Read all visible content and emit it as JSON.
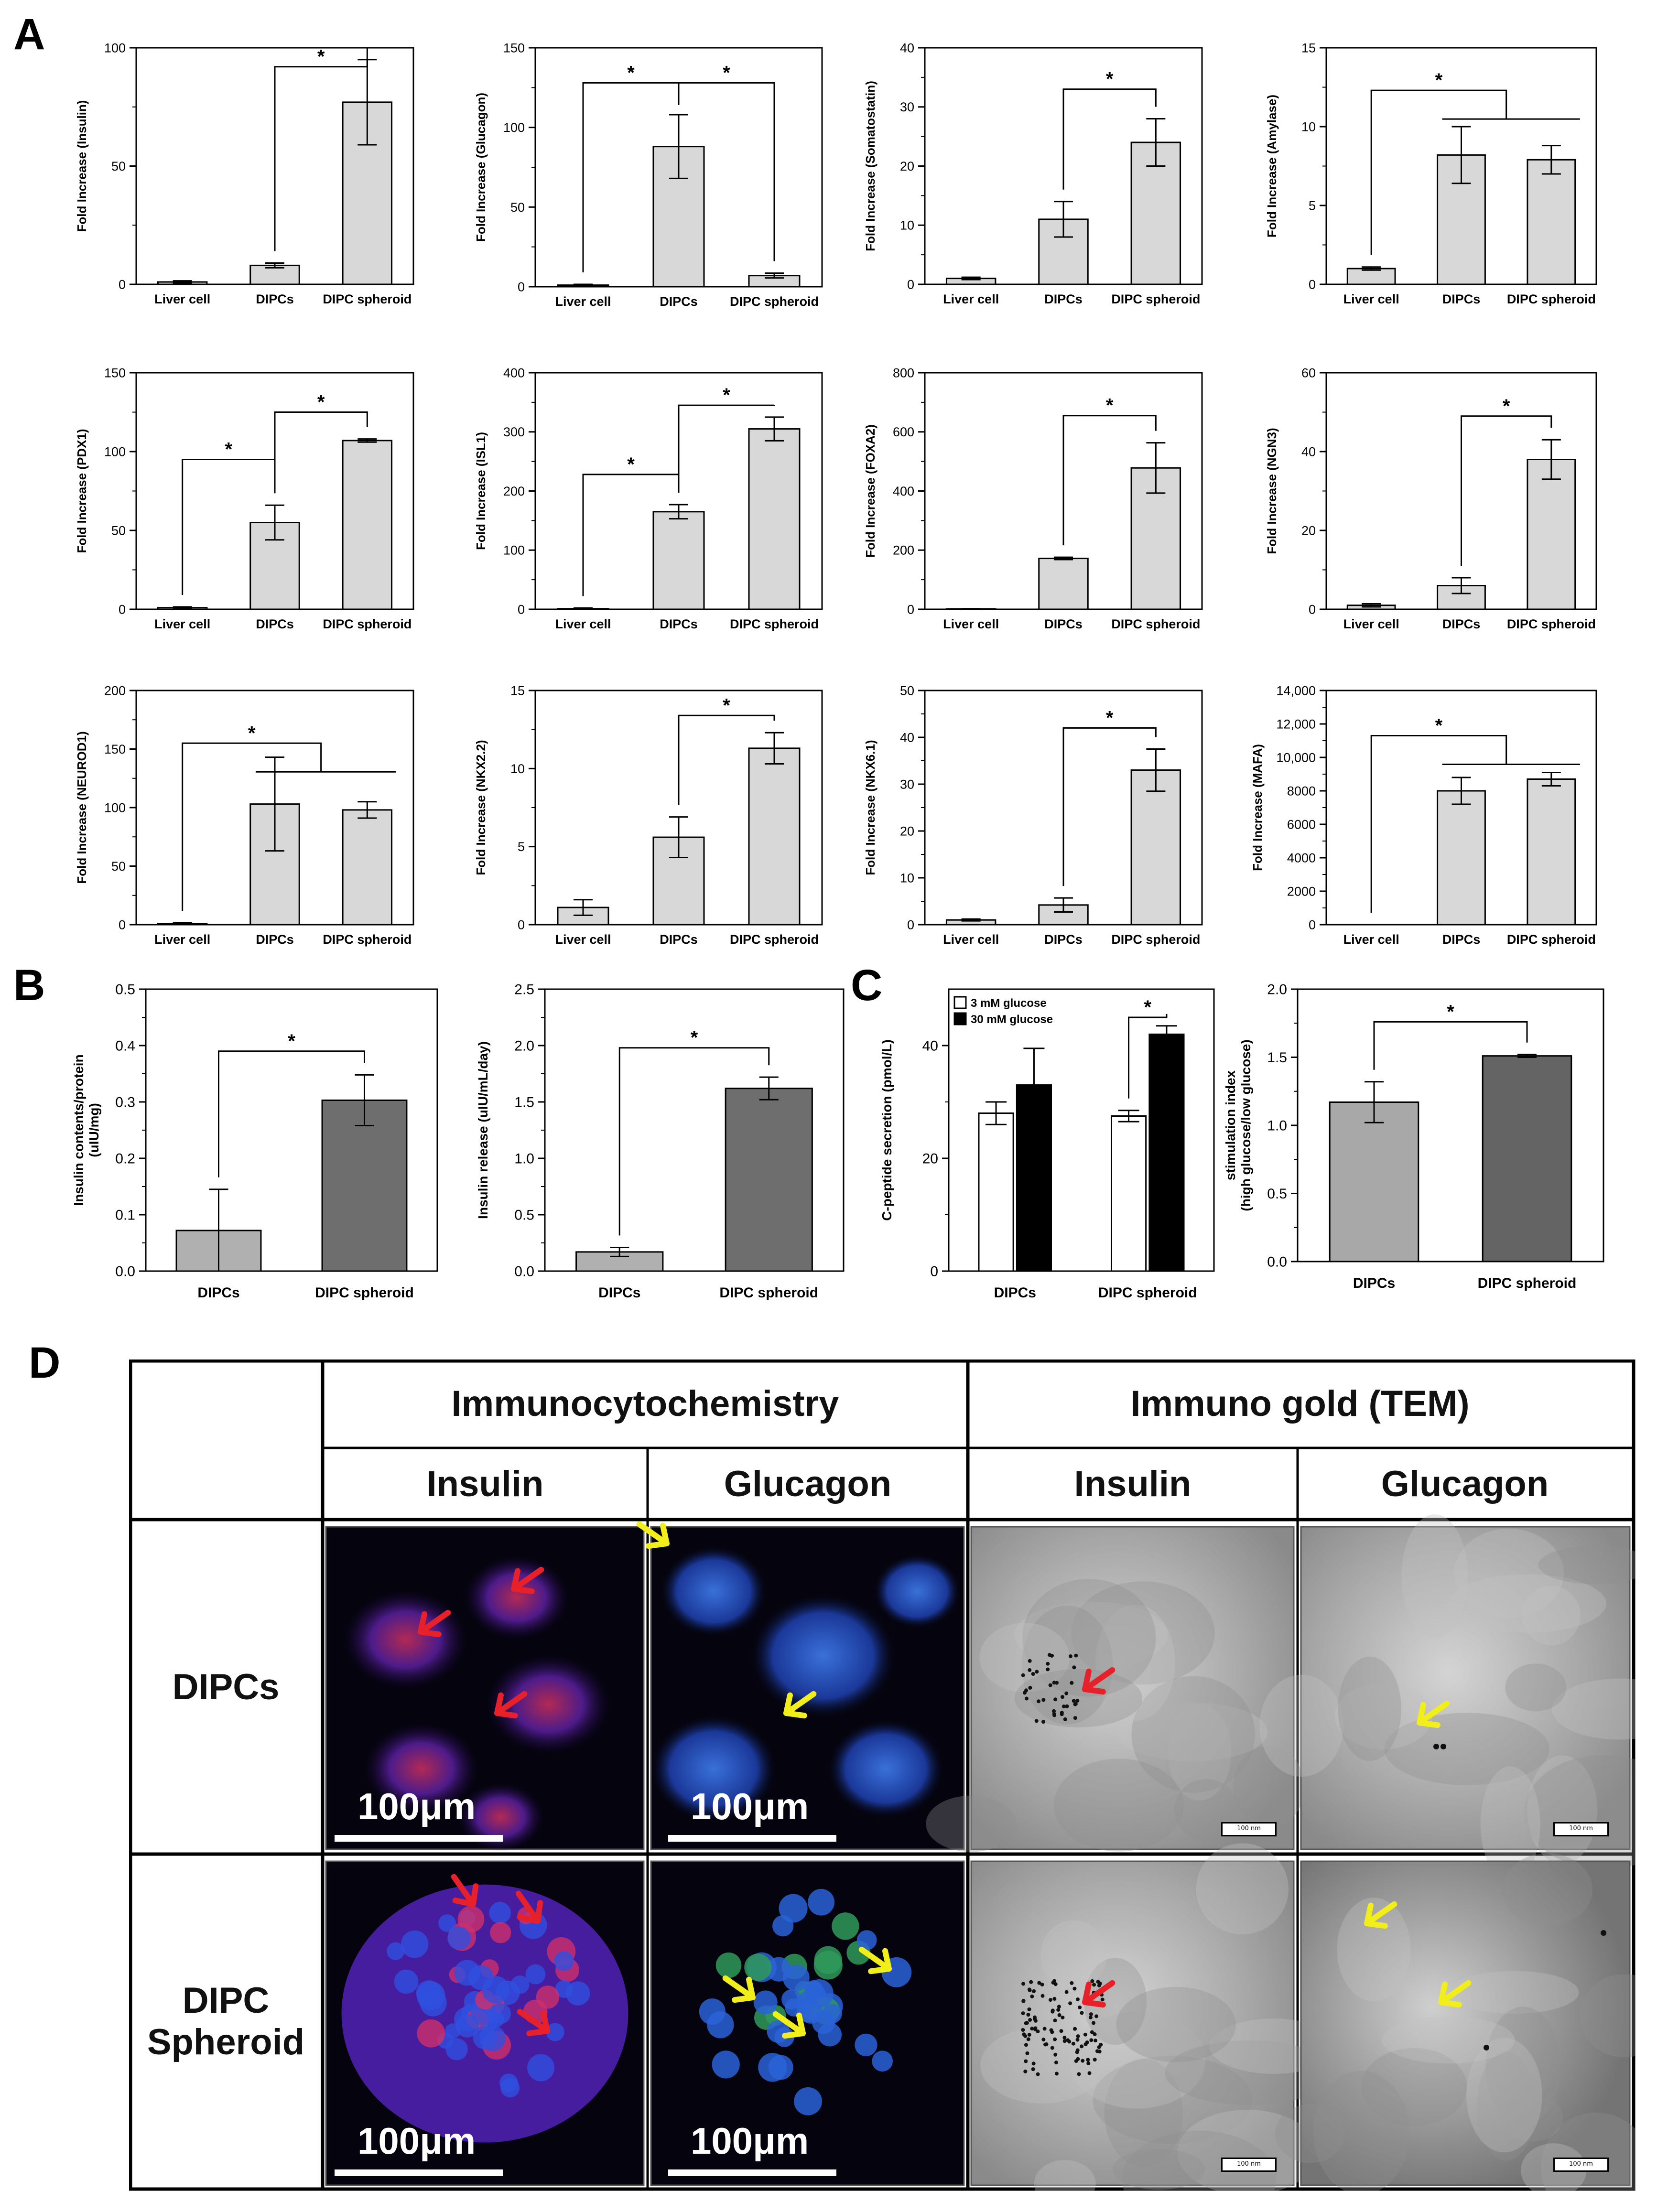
{
  "panels": {
    "A": "A",
    "B": "B",
    "C": "C",
    "D": "D"
  },
  "chart_data": [
    {
      "id": "insulin",
      "type": "bar",
      "categories": [
        "Liver cell",
        "DIPCs",
        "DIPC spheroid"
      ],
      "values": [
        1,
        8,
        77
      ],
      "errors": [
        0.5,
        1,
        18
      ],
      "ylabel": "Fold Increase (Insulin)",
      "ylim": [
        0,
        100
      ],
      "yticks": [
        "0",
        "50",
        "100"
      ],
      "sig": [
        {
          "from": 1,
          "to": 2,
          "y": 92,
          "label": "*",
          "mode": "pair"
        }
      ]
    },
    {
      "id": "glucagon",
      "type": "bar",
      "categories": [
        "Liver cell",
        "DIPCs",
        "DIPC spheroid"
      ],
      "values": [
        1,
        88,
        7
      ],
      "errors": [
        0.5,
        20,
        1.5
      ],
      "ylabel": "Fold Increase (Glucagon)",
      "ylim": [
        0,
        150
      ],
      "yticks": [
        "0",
        "50",
        "100",
        "150"
      ],
      "sig": [
        {
          "from": 0,
          "to": 2,
          "hub": 1,
          "y": 128,
          "label": "*",
          "mode": "split"
        }
      ]
    },
    {
      "id": "somatostatin",
      "type": "bar",
      "categories": [
        "Liver cell",
        "DIPCs",
        "DIPC spheroid"
      ],
      "values": [
        1,
        11,
        24
      ],
      "errors": [
        0.2,
        3,
        4
      ],
      "ylabel": "Fold Increase (Somatostatin)",
      "ylim": [
        0,
        40
      ],
      "yticks": [
        "0",
        "10",
        "20",
        "30",
        "40"
      ],
      "sig": [
        {
          "from": 1,
          "to": 2,
          "y": 33,
          "label": "*",
          "mode": "pair"
        }
      ]
    },
    {
      "id": "amylase",
      "type": "bar",
      "categories": [
        "Liver cell",
        "DIPCs",
        "DIPC spheroid"
      ],
      "values": [
        1,
        8.2,
        7.9
      ],
      "errors": [
        0.1,
        1.8,
        0.9
      ],
      "ylabel": "Fold Increase (Amylase)",
      "ylim": [
        0,
        15
      ],
      "yticks": [
        "0",
        "5",
        "10",
        "15"
      ],
      "sig": [
        {
          "from": 0,
          "to": 2,
          "y": 12.3,
          "label": "*",
          "mode": "group"
        }
      ]
    },
    {
      "id": "pdx1",
      "type": "bar",
      "categories": [
        "Liver cell",
        "DIPCs",
        "DIPC spheroid"
      ],
      "values": [
        1,
        55,
        107
      ],
      "errors": [
        0.5,
        11,
        1
      ],
      "ylabel": "Fold Increase (PDX1)",
      "ylim": [
        0,
        150
      ],
      "yticks": [
        "0",
        "50",
        "100",
        "150"
      ],
      "sig": [
        {
          "from": 0,
          "to": 1,
          "y": 95,
          "label": "*",
          "mode": "pair"
        },
        {
          "from": 1,
          "to": 2,
          "y": 125,
          "label": "*",
          "mode": "pair"
        }
      ]
    },
    {
      "id": "isl1",
      "type": "bar",
      "categories": [
        "Liver cell",
        "DIPCs",
        "DIPC spheroid"
      ],
      "values": [
        1,
        165,
        305
      ],
      "errors": [
        1,
        12,
        20
      ],
      "ylabel": "Fold Increase (ISL1)",
      "ylim": [
        0,
        400
      ],
      "yticks": [
        "0",
        "100",
        "200",
        "300",
        "400"
      ],
      "sig": [
        {
          "from": 0,
          "to": 1,
          "y": 228,
          "label": "*",
          "mode": "pair"
        },
        {
          "from": 1,
          "to": 2,
          "y": 345,
          "label": "*",
          "mode": "pair"
        }
      ]
    },
    {
      "id": "foxa2",
      "type": "bar",
      "categories": [
        "Liver cell",
        "DIPCs",
        "DIPC spheroid"
      ],
      "values": [
        1,
        172,
        478
      ],
      "errors": [
        1,
        4,
        85
      ],
      "ylabel": "Fold Increase (FOXA2)",
      "ylim": [
        0,
        800
      ],
      "yticks": [
        "0",
        "200",
        "400",
        "600",
        "800"
      ],
      "sig": [
        {
          "from": 1,
          "to": 2,
          "y": 655,
          "label": "*",
          "mode": "pair"
        }
      ]
    },
    {
      "id": "ngn3",
      "type": "bar",
      "categories": [
        "Liver cell",
        "DIPCs",
        "DIPC spheroid"
      ],
      "values": [
        1,
        6,
        38
      ],
      "errors": [
        0.4,
        2,
        5
      ],
      "ylabel": "Fold Increase (NGN3)",
      "ylim": [
        0,
        60
      ],
      "yticks": [
        "0",
        "20",
        "40",
        "60"
      ],
      "sig": [
        {
          "from": 1,
          "to": 2,
          "y": 49,
          "label": "*",
          "mode": "pair"
        }
      ]
    },
    {
      "id": "neurod1",
      "type": "bar",
      "categories": [
        "Liver cell",
        "DIPCs",
        "DIPC spheroid"
      ],
      "values": [
        1,
        103,
        98
      ],
      "errors": [
        0.5,
        40,
        7
      ],
      "ylabel": "Fold Increase (NEUROD1)",
      "ylim": [
        0,
        200
      ],
      "yticks": [
        "0",
        "50",
        "100",
        "150",
        "200"
      ],
      "sig": [
        {
          "from": 0,
          "to": 2,
          "y": 155,
          "label": "*",
          "mode": "group"
        }
      ]
    },
    {
      "id": "nkx22",
      "type": "bar",
      "categories": [
        "Liver cell",
        "DIPCs",
        "DIPC spheroid"
      ],
      "values": [
        1.1,
        5.6,
        11.3
      ],
      "errors": [
        0.5,
        1.3,
        1
      ],
      "ylabel": "Fold Increase (NKX2.2)",
      "ylim": [
        0,
        15
      ],
      "yticks": [
        "0",
        "5",
        "10",
        "15"
      ],
      "sig": [
        {
          "from": 1,
          "to": 2,
          "y": 13.4,
          "label": "*",
          "mode": "pair"
        }
      ]
    },
    {
      "id": "nkx61",
      "type": "bar",
      "categories": [
        "Liver cell",
        "DIPCs",
        "DIPC spheroid"
      ],
      "values": [
        1,
        4.2,
        33
      ],
      "errors": [
        0.2,
        1.5,
        4.5
      ],
      "ylabel": "Fold Increase (NKX6.1)",
      "ylim": [
        0,
        50
      ],
      "yticks": [
        "0",
        "10",
        "20",
        "30",
        "40",
        "50"
      ],
      "sig": [
        {
          "from": 1,
          "to": 2,
          "y": 42,
          "label": "*",
          "mode": "pair"
        }
      ]
    },
    {
      "id": "mafa",
      "type": "bar",
      "categories": [
        "Liver cell",
        "DIPCs",
        "DIPC spheroid"
      ],
      "values": [
        0,
        8000,
        8700
      ],
      "errors": [
        0,
        800,
        400
      ],
      "ylabel": "Fold Increase (MAFA)",
      "ylim": [
        0,
        14000
      ],
      "yticks": [
        "0",
        "2000",
        "4000",
        "6000",
        "8000",
        "10,000",
        "12,000",
        "14,000"
      ],
      "sig": [
        {
          "from": 0,
          "to": 2,
          "y": 11300,
          "label": "*",
          "mode": "group"
        }
      ]
    },
    {
      "id": "insulin-content",
      "type": "bar",
      "categories": [
        "DIPCs",
        "DIPC spheroid"
      ],
      "values": [
        0.072,
        0.303
      ],
      "errors": [
        0.073,
        0.045
      ],
      "ylabel": "Insulin contents/protein (uIU/mg)",
      "ylim": [
        0,
        0.5
      ],
      "yticks": [
        "0.0",
        "0.1",
        "0.2",
        "0.3",
        "0.4",
        "0.5"
      ],
      "colors": [
        "#b0b0b0",
        "#6e6e6e"
      ],
      "sig": [
        {
          "from": 0,
          "to": 1,
          "y": 0.39,
          "label": "*",
          "mode": "pair"
        }
      ]
    },
    {
      "id": "insulin-release",
      "type": "bar",
      "categories": [
        "DIPCs",
        "DIPC spheroid"
      ],
      "values": [
        0.17,
        1.62
      ],
      "errors": [
        0.04,
        0.1
      ],
      "ylabel": "Insulin release (uIU/mL/day)",
      "ylim": [
        0,
        2.5
      ],
      "yticks": [
        "0.0",
        "0.5",
        "1.0",
        "1.5",
        "2.0",
        "2.5"
      ],
      "colors": [
        "#b0b0b0",
        "#6e6e6e"
      ],
      "sig": [
        {
          "from": 0,
          "to": 1,
          "y": 1.98,
          "label": "*",
          "mode": "pair"
        }
      ]
    },
    {
      "id": "c-peptide",
      "type": "bar",
      "categories": [
        "DIPCs",
        "DIPC spheroid"
      ],
      "series": [
        {
          "name": "3 mM glucose",
          "values": [
            28,
            27.5
          ],
          "errors": [
            2,
            1
          ],
          "color": "#ffffff"
        },
        {
          "name": "30 mM glucose",
          "values": [
            33,
            42
          ],
          "errors": [
            6.5,
            1.5
          ],
          "color": "#000000"
        }
      ],
      "ylabel": "C-peptide secretion (pmol/L)",
      "ylim": [
        0,
        50
      ],
      "yticks": [
        "0",
        "20",
        "40"
      ],
      "legend": "top-left",
      "sig": [
        {
          "from": 2,
          "to": 3,
          "y": 45,
          "label": "*",
          "mode": "pair"
        }
      ]
    },
    {
      "id": "stimulation-index",
      "type": "bar",
      "categories": [
        "DIPCs",
        "DIPC spheroid"
      ],
      "values": [
        1.17,
        1.51
      ],
      "errors": [
        0.15,
        0.01
      ],
      "ylabel": "stimulation index (high glucose/low glucose)",
      "ylim": [
        0,
        2.0
      ],
      "yticks": [
        "0.0",
        "0.5",
        "1.0",
        "1.5",
        "2.0"
      ],
      "colors": [
        "#a8a8a8",
        "#646464"
      ],
      "sig": [
        {
          "from": 0,
          "to": 1,
          "y": 1.76,
          "label": "*",
          "mode": "pair"
        }
      ]
    }
  ],
  "table": {
    "group_icc": "Immunocytochemistry",
    "group_tem": "Immuno gold (TEM)",
    "col_insulin_1": "Insulin",
    "col_glucagon_1": "Glucagon",
    "col_insulin_2": "Insulin",
    "col_glucagon_2": "Glucagon",
    "row_1": "DIPCs",
    "row_2_line1": "DIPC",
    "row_2_line2": "Spheroid",
    "scale_micro": "100μm",
    "scale_tem": "100 nm"
  }
}
